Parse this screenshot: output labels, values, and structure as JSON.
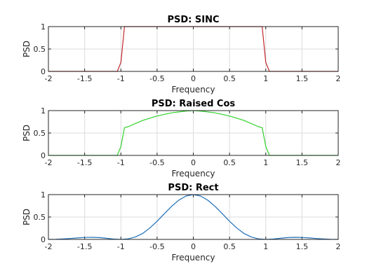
{
  "chart_data": [
    {
      "type": "line",
      "title": "PSD: SINC",
      "xlabel": "Frequency",
      "ylabel": "PSD",
      "xlim": [
        -2,
        2
      ],
      "ylim": [
        0,
        1
      ],
      "xticks": [
        "-2",
        "-1.5",
        "-1",
        "-0.5",
        "0",
        "0.5",
        "1",
        "1.5",
        "2"
      ],
      "yticks": [
        "0",
        "0.5",
        "1"
      ],
      "grid": true,
      "color": "#c0262a",
      "x": [
        -2,
        -1.1,
        -1.05,
        -1.0,
        -0.95,
        -0.9,
        0.9,
        0.95,
        1.0,
        1.05,
        1.1,
        2
      ],
      "y": [
        0,
        0,
        0,
        0.2,
        1,
        1,
        1,
        1,
        0.2,
        0,
        0,
        0
      ]
    },
    {
      "type": "line",
      "title": "PSD: Raised Cos",
      "xlabel": "Frequency",
      "ylabel": "PSD",
      "xlim": [
        -2,
        2
      ],
      "ylim": [
        0,
        1
      ],
      "xticks": [
        "-2",
        "-1.5",
        "-1",
        "-0.5",
        "0",
        "0.5",
        "1",
        "1.5",
        "2"
      ],
      "yticks": [
        "0",
        "0.5",
        "1"
      ],
      "grid": true,
      "color": "#2fd22a",
      "x": [
        -2,
        -1.1,
        -1.05,
        -1.0,
        -0.95,
        -0.9,
        -0.7,
        -0.5,
        -0.3,
        -0.1,
        0,
        0.1,
        0.3,
        0.5,
        0.7,
        0.9,
        0.95,
        1.0,
        1.05,
        1.1,
        2
      ],
      "y": [
        0,
        0,
        0,
        0.2,
        0.62,
        0.64,
        0.78,
        0.88,
        0.95,
        0.99,
        1.0,
        0.99,
        0.95,
        0.88,
        0.78,
        0.64,
        0.62,
        0.2,
        0,
        0,
        0
      ]
    },
    {
      "type": "line",
      "title": "PSD: Rect",
      "xlabel": "Frequency",
      "ylabel": "PSD",
      "xlim": [
        -2,
        2
      ],
      "ylim": [
        0,
        1
      ],
      "xticks": [
        "-2",
        "-1.5",
        "-1",
        "-0.5",
        "0",
        "0.5",
        "1",
        "1.5",
        "2"
      ],
      "yticks": [
        "0",
        "0.5",
        "1"
      ],
      "grid": true,
      "color": "#1f6fb8",
      "x": [
        -2,
        -1.9,
        -1.8,
        -1.7,
        -1.6,
        -1.5,
        -1.4,
        -1.3,
        -1.2,
        -1.1,
        -1.0,
        -0.9,
        -0.8,
        -0.7,
        -0.6,
        -0.5,
        -0.4,
        -0.3,
        -0.2,
        -0.1,
        0,
        0.1,
        0.2,
        0.3,
        0.4,
        0.5,
        0.6,
        0.7,
        0.8,
        0.9,
        1.0,
        1.1,
        1.2,
        1.3,
        1.4,
        1.5,
        1.6,
        1.7,
        1.8,
        1.9,
        2
      ],
      "y": [
        0,
        0.002,
        0.01,
        0.02,
        0.033,
        0.043,
        0.047,
        0.04,
        0.025,
        0.008,
        0,
        0.012,
        0.053,
        0.132,
        0.255,
        0.405,
        0.573,
        0.737,
        0.875,
        0.968,
        1.0,
        0.968,
        0.875,
        0.737,
        0.573,
        0.405,
        0.255,
        0.132,
        0.053,
        0.012,
        0,
        0.008,
        0.025,
        0.04,
        0.047,
        0.043,
        0.033,
        0.02,
        0.01,
        0.002,
        0
      ]
    }
  ]
}
